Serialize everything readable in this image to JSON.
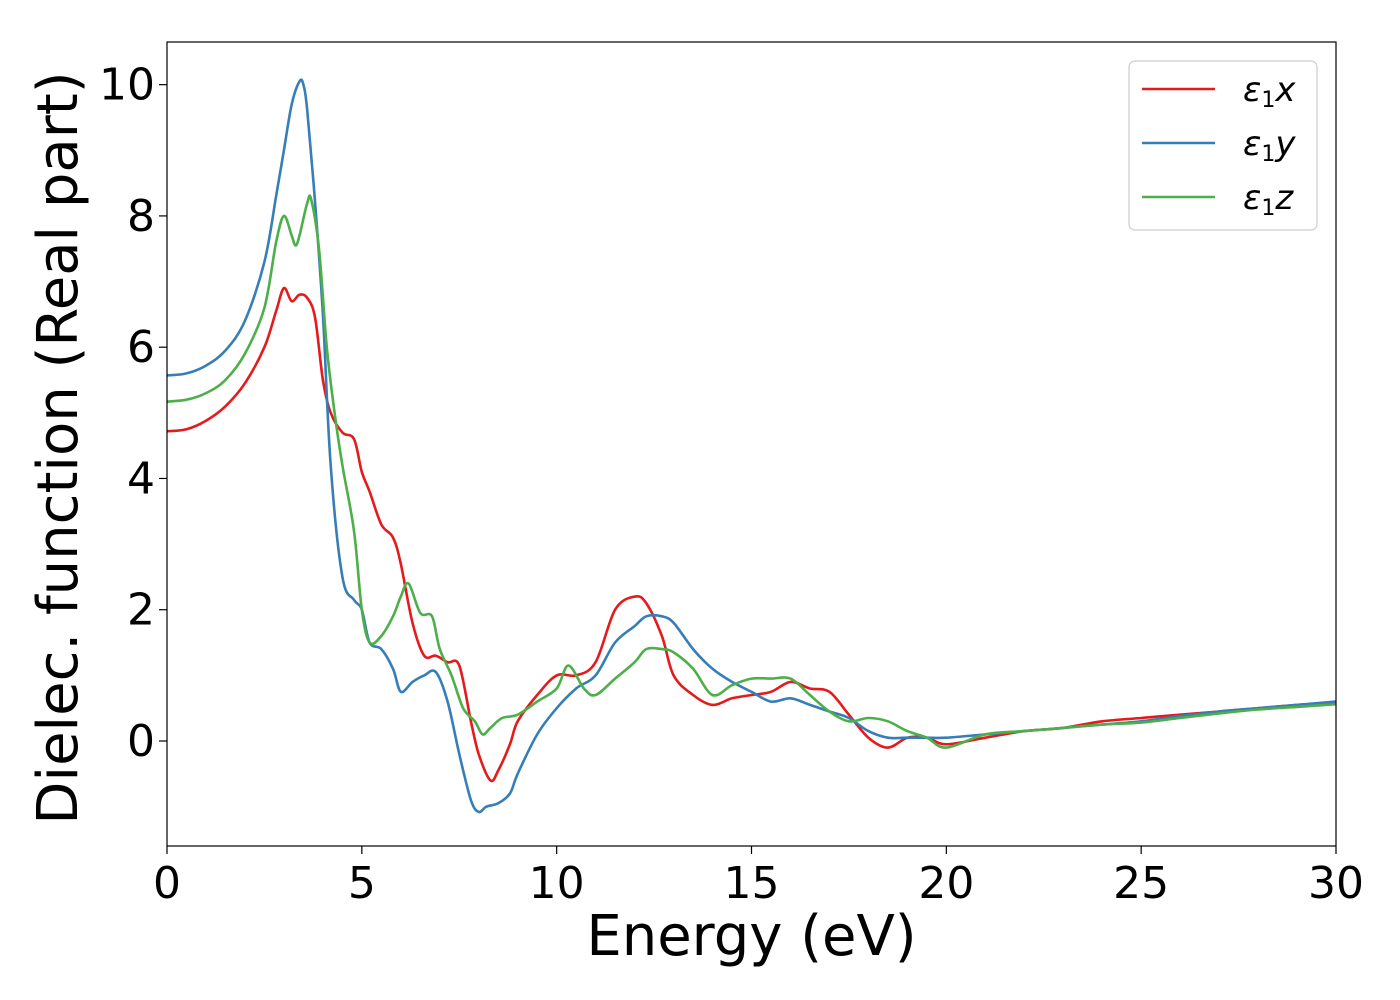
{
  "chart_data": {
    "type": "line",
    "xlabel": "Energy (eV)",
    "ylabel": "Dielec. function (Real part)",
    "xlim": [
      0,
      30
    ],
    "ylim": [
      -1.6,
      10.65
    ],
    "x_ticks": [
      0,
      5,
      10,
      15,
      20,
      25,
      30
    ],
    "y_ticks": [
      0,
      2,
      4,
      6,
      8,
      10
    ],
    "x_tick_labels": [
      "0",
      "5",
      "10",
      "15",
      "20",
      "25",
      "30"
    ],
    "y_tick_labels": [
      "0",
      "2",
      "4",
      "6",
      "8",
      "10"
    ],
    "grid": false,
    "legend": {
      "placement": "top-right",
      "entries": [
        {
          "base": "ε",
          "sub": "1",
          "comp": "x",
          "color": "#e41a1c"
        },
        {
          "base": "ε",
          "sub": "1",
          "comp": "y",
          "color": "#377eb8"
        },
        {
          "base": "ε",
          "sub": "1",
          "comp": "z",
          "color": "#4daf4a"
        }
      ]
    },
    "series": [
      {
        "name": "ε1x",
        "color": "#e41a1c",
        "x": [
          0,
          0.5,
          1,
          1.5,
          2,
          2.5,
          2.8,
          3.0,
          3.2,
          3.4,
          3.6,
          3.8,
          4.0,
          4.2,
          4.5,
          4.8,
          5.0,
          5.2,
          5.5,
          5.8,
          6.0,
          6.3,
          6.6,
          6.9,
          7.2,
          7.5,
          7.8,
          8.0,
          8.3,
          8.5,
          8.8,
          9.0,
          9.5,
          10.0,
          10.5,
          11.0,
          11.5,
          12.0,
          12.3,
          12.7,
          13.0,
          13.5,
          14.0,
          14.5,
          15.0,
          15.5,
          16.0,
          16.5,
          17.0,
          17.5,
          18.0,
          18.5,
          19.0,
          19.5,
          20.0,
          21.0,
          22.0,
          23.0,
          24.0,
          25.0,
          26.0,
          27.0,
          28.0,
          29.0,
          30.0
        ],
        "values": [
          4.72,
          4.75,
          4.88,
          5.1,
          5.45,
          6.0,
          6.55,
          6.9,
          6.7,
          6.8,
          6.75,
          6.45,
          5.5,
          5.0,
          4.7,
          4.6,
          4.1,
          3.8,
          3.3,
          3.1,
          2.7,
          1.8,
          1.3,
          1.3,
          1.2,
          1.15,
          0.3,
          -0.2,
          -0.6,
          -0.45,
          -0.05,
          0.3,
          0.7,
          1.0,
          1.0,
          1.2,
          2.0,
          2.2,
          2.1,
          1.6,
          1.0,
          0.7,
          0.55,
          0.65,
          0.7,
          0.75,
          0.9,
          0.8,
          0.75,
          0.4,
          0.05,
          -0.1,
          0.05,
          0.05,
          -0.05,
          0.05,
          0.15,
          0.2,
          0.3,
          0.35,
          0.4,
          0.45,
          0.5,
          0.55,
          0.58
        ]
      },
      {
        "name": "ε1y",
        "color": "#377eb8",
        "x": [
          0,
          0.5,
          1,
          1.5,
          2,
          2.5,
          2.8,
          3.0,
          3.2,
          3.4,
          3.5,
          3.6,
          3.8,
          4.0,
          4.2,
          4.5,
          4.8,
          5.0,
          5.2,
          5.5,
          5.8,
          6.0,
          6.3,
          6.6,
          6.9,
          7.2,
          7.5,
          7.8,
          8.0,
          8.2,
          8.5,
          8.8,
          9.0,
          9.5,
          10.0,
          10.5,
          11.0,
          11.5,
          12.0,
          12.3,
          12.7,
          13.0,
          13.5,
          14.0,
          14.5,
          15.0,
          15.5,
          16.0,
          16.5,
          17.0,
          17.5,
          18.0,
          18.5,
          19.0,
          19.5,
          20.0,
          21.0,
          22.0,
          23.0,
          24.0,
          25.0,
          26.0,
          27.0,
          28.0,
          29.0,
          30.0
        ],
        "values": [
          5.57,
          5.6,
          5.72,
          5.95,
          6.4,
          7.3,
          8.3,
          9.0,
          9.7,
          10.05,
          10.0,
          9.6,
          8.2,
          6.5,
          4.2,
          2.5,
          2.15,
          2.0,
          1.5,
          1.4,
          1.1,
          0.75,
          0.9,
          1.0,
          1.05,
          0.6,
          -0.2,
          -0.9,
          -1.08,
          -1.0,
          -0.95,
          -0.8,
          -0.5,
          0.1,
          0.5,
          0.8,
          1.0,
          1.5,
          1.75,
          1.9,
          1.9,
          1.8,
          1.4,
          1.1,
          0.9,
          0.75,
          0.6,
          0.65,
          0.55,
          0.45,
          0.35,
          0.15,
          0.05,
          0.05,
          0.05,
          0.05,
          0.1,
          0.15,
          0.2,
          0.25,
          0.3,
          0.38,
          0.45,
          0.5,
          0.55,
          0.6
        ]
      },
      {
        "name": "ε1z",
        "color": "#4daf4a",
        "x": [
          0,
          0.5,
          1,
          1.5,
          2,
          2.5,
          2.8,
          3.0,
          3.2,
          3.3,
          3.4,
          3.6,
          3.7,
          3.9,
          4.1,
          4.3,
          4.5,
          4.8,
          5.0,
          5.2,
          5.5,
          5.8,
          6.0,
          6.2,
          6.5,
          6.8,
          7.0,
          7.3,
          7.6,
          7.9,
          8.1,
          8.3,
          8.6,
          9.0,
          9.5,
          10.0,
          10.3,
          10.7,
          11.0,
          11.5,
          12.0,
          12.3,
          12.7,
          13.0,
          13.5,
          14.0,
          14.5,
          15.0,
          15.5,
          16.0,
          16.5,
          17.0,
          17.5,
          18.0,
          18.5,
          19.0,
          19.5,
          20.0,
          21.0,
          22.0,
          23.0,
          24.0,
          25.0,
          26.0,
          27.0,
          28.0,
          29.0,
          30.0
        ],
        "values": [
          5.17,
          5.2,
          5.3,
          5.5,
          5.9,
          6.6,
          7.6,
          8.0,
          7.7,
          7.55,
          7.7,
          8.2,
          8.25,
          7.5,
          6.0,
          5.0,
          4.2,
          3.2,
          2.0,
          1.5,
          1.6,
          1.9,
          2.2,
          2.4,
          1.95,
          1.9,
          1.4,
          1.0,
          0.5,
          0.3,
          0.1,
          0.2,
          0.35,
          0.4,
          0.6,
          0.8,
          1.15,
          0.8,
          0.7,
          0.95,
          1.2,
          1.4,
          1.4,
          1.35,
          1.1,
          0.7,
          0.85,
          0.95,
          0.95,
          0.95,
          0.7,
          0.45,
          0.3,
          0.35,
          0.3,
          0.15,
          0.05,
          -0.1,
          0.1,
          0.15,
          0.2,
          0.25,
          0.28,
          0.35,
          0.42,
          0.48,
          0.52,
          0.56
        ]
      }
    ]
  }
}
